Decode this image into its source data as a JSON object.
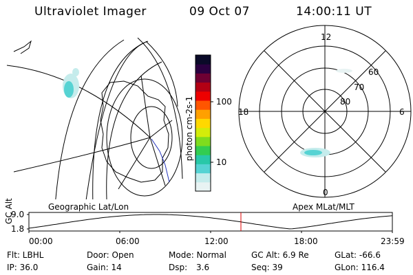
{
  "header": {
    "instrument": "Ultraviolet Imager",
    "date": "09 Oct 07",
    "time": "14:00:11 UT"
  },
  "left_panel": {
    "caption": "Geographic Lat/Lon"
  },
  "right_panel": {
    "caption": "Apex MLat/MLT",
    "mlt_labels": [
      "12",
      "18",
      "6",
      "0"
    ],
    "mlat_labels": [
      "60",
      "70",
      "80"
    ]
  },
  "colorbar": {
    "unit_label": "photon cm-2s-1",
    "tick_labels": [
      "100",
      "10"
    ],
    "colors": [
      "#e8f3f3",
      "#c5ecec",
      "#56d3d3",
      "#28c8a8",
      "#32cd50",
      "#7fdc1e",
      "#d4ec0a",
      "#ffd800",
      "#ffa000",
      "#ff5500",
      "#ee0000",
      "#b30014",
      "#6e0033",
      "#2a0040",
      "#0a0a28"
    ]
  },
  "timeline": {
    "ylabel": "GC Alt",
    "yticks": [
      "9.0",
      "1.8"
    ],
    "xticks": [
      "00:00",
      "06:00",
      "12:00",
      "18:00",
      "23:59"
    ],
    "current_fraction": 0.5834,
    "curve_color": "#000000",
    "marker_color": "#e00000"
  },
  "info": {
    "row1": [
      "Flt: LBHL",
      "Door: Open",
      "Mode: Normal",
      "GC Alt: 6.9 Re",
      "GLat: -66.6"
    ],
    "row2": [
      "IP: 36.0",
      "Gain: 14",
      "Dsp:",
      "3.6",
      "Seq: 39",
      "GLon: 116.4"
    ]
  }
}
